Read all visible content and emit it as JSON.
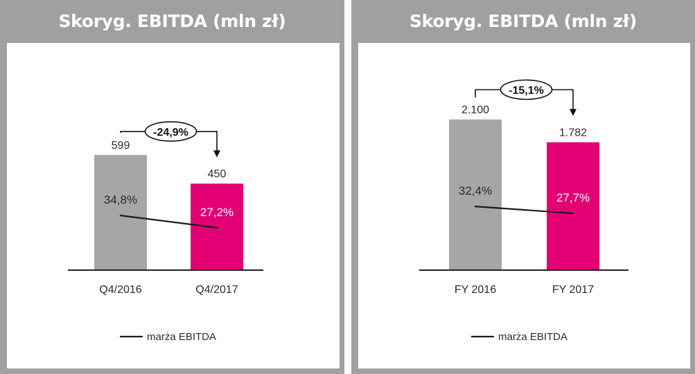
{
  "colors": {
    "gray_bar": "#a6a6a6",
    "magenta_bar": "#e20074",
    "frame": "#a0a0a0"
  },
  "chart_data": [
    {
      "type": "bar",
      "title": "Skoryg. EBITDA (mln zł)",
      "categories": [
        "Q4/2016",
        "Q4/2017"
      ],
      "values": [
        599,
        450
      ],
      "value_labels": [
        "599",
        "450"
      ],
      "ylim": [
        0,
        800
      ],
      "margin_series": {
        "name": "marża EBITDA",
        "values": [
          34.8,
          27.2
        ],
        "labels": [
          "34,8%",
          "27,2%"
        ]
      },
      "change_label": "-24,9%",
      "legend": "marża EBITDA"
    },
    {
      "type": "bar",
      "title": "Skoryg. EBITDA (mln zł)",
      "categories": [
        "FY 2016",
        "FY 2017"
      ],
      "values": [
        2100,
        1782
      ],
      "value_labels": [
        "2.100",
        "1.782"
      ],
      "ylim": [
        0,
        2800
      ],
      "margin_series": {
        "name": "marża EBITDA",
        "values": [
          32.4,
          27.7
        ],
        "labels": [
          "32,4%",
          "27,7%"
        ]
      },
      "change_label": "-15,1%",
      "legend": "marża EBITDA"
    }
  ]
}
